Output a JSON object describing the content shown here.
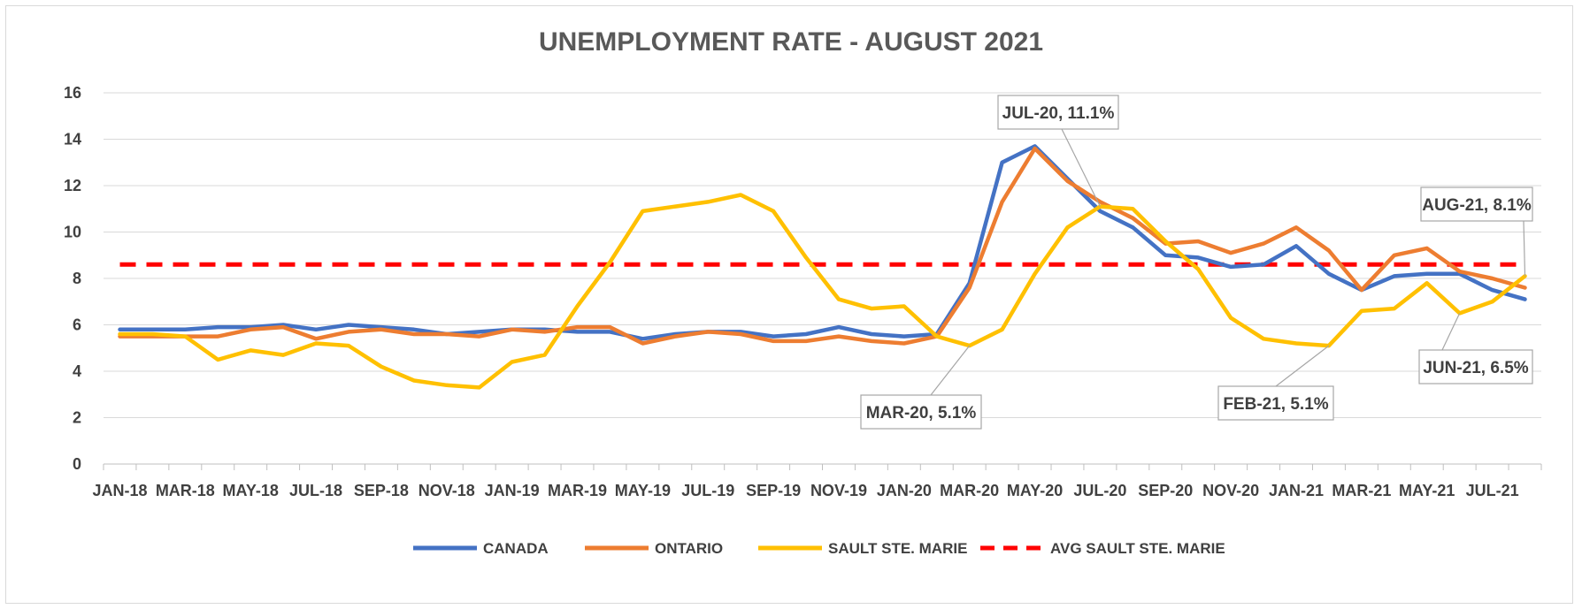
{
  "chart_data": {
    "type": "line",
    "title": "UNEMPLOYMENT RATE - AUGUST 2021",
    "xlabel": "",
    "ylabel": "",
    "ylim": [
      0,
      16
    ],
    "yticks": [
      "0",
      "2",
      "4",
      "6",
      "8",
      "10",
      "12",
      "14",
      "16"
    ],
    "x": [
      "Jan-18",
      "Feb-18",
      "Mar-18",
      "Apr-18",
      "May-18",
      "Jun-18",
      "Jul-18",
      "Aug-18",
      "Sep-18",
      "Oct-18",
      "Nov-18",
      "Dec-18",
      "Jan-19",
      "Feb-19",
      "Mar-19",
      "Apr-19",
      "May-19",
      "Jun-19",
      "Jul-19",
      "Aug-19",
      "Sep-19",
      "Oct-19",
      "Nov-19",
      "Dec-19",
      "Jan-20",
      "Feb-20",
      "Mar-20",
      "Apr-20",
      "May-20",
      "Jun-20",
      "Jul-20",
      "Aug-20",
      "Sep-20",
      "Oct-20",
      "Nov-20",
      "Dec-20",
      "Jan-21",
      "Feb-21",
      "Mar-21",
      "Apr-21",
      "May-21",
      "Jun-21",
      "Jul-21",
      "Aug-21"
    ],
    "xtick_labels": [
      "JAN-18",
      "MAR-18",
      "MAY-18",
      "JUL-18",
      "SEP-18",
      "NOV-18",
      "JAN-19",
      "MAR-19",
      "MAY-19",
      "JUL-19",
      "SEP-19",
      "NOV-19",
      "JAN-20",
      "MAR-20",
      "MAY-20",
      "JUL-20",
      "SEP-20",
      "NOV-20",
      "JAN-21",
      "MAR-21",
      "MAY-21",
      "JUL-21"
    ],
    "grid": "horizontal",
    "legend_position": "bottom",
    "series": [
      {
        "name": "CANADA",
        "color": "#4472c4",
        "style": "solid",
        "values": [
          5.8,
          5.8,
          5.8,
          5.9,
          5.9,
          6.0,
          5.8,
          6.0,
          5.9,
          5.8,
          5.6,
          5.7,
          5.8,
          5.8,
          5.7,
          5.7,
          5.4,
          5.6,
          5.7,
          5.7,
          5.5,
          5.6,
          5.9,
          5.6,
          5.5,
          5.6,
          7.8,
          13.0,
          13.7,
          12.3,
          10.9,
          10.2,
          9.0,
          8.9,
          8.5,
          8.6,
          9.4,
          8.2,
          7.5,
          8.1,
          8.2,
          8.2,
          7.5,
          7.1
        ]
      },
      {
        "name": "ONTARIO",
        "color": "#ed7d31",
        "style": "solid",
        "values": [
          5.5,
          5.5,
          5.5,
          5.5,
          5.8,
          5.9,
          5.4,
          5.7,
          5.8,
          5.6,
          5.6,
          5.5,
          5.8,
          5.7,
          5.9,
          5.9,
          5.2,
          5.5,
          5.7,
          5.6,
          5.3,
          5.3,
          5.5,
          5.3,
          5.2,
          5.5,
          7.6,
          11.3,
          13.6,
          12.2,
          11.3,
          10.6,
          9.5,
          9.6,
          9.1,
          9.5,
          10.2,
          9.2,
          7.5,
          9.0,
          9.3,
          8.3,
          8.0,
          7.6
        ]
      },
      {
        "name": "SAULT STE. MARIE",
        "color": "#ffc000",
        "style": "solid",
        "values": [
          5.6,
          5.6,
          5.5,
          4.5,
          4.9,
          4.7,
          5.2,
          5.1,
          4.2,
          3.6,
          3.4,
          3.3,
          4.4,
          4.7,
          6.8,
          8.7,
          10.9,
          11.1,
          11.3,
          11.6,
          10.9,
          8.9,
          7.1,
          6.7,
          6.8,
          5.5,
          5.1,
          5.8,
          8.2,
          10.2,
          11.1,
          11.0,
          9.6,
          8.4,
          6.3,
          5.4,
          5.2,
          5.1,
          6.6,
          6.7,
          7.8,
          6.5,
          7.0,
          8.1
        ]
      },
      {
        "name": "AVG SAULT STE. MARIE",
        "color": "#ff0000",
        "style": "dashed",
        "values": [
          8.6,
          8.6,
          8.6,
          8.6,
          8.6,
          8.6,
          8.6,
          8.6,
          8.6,
          8.6,
          8.6,
          8.6,
          8.6,
          8.6,
          8.6,
          8.6,
          8.6,
          8.6,
          8.6,
          8.6,
          8.6,
          8.6,
          8.6,
          8.6,
          8.6,
          8.6,
          8.6,
          8.6,
          8.6,
          8.6,
          8.6,
          8.6,
          8.6,
          8.6,
          8.6,
          8.6,
          8.6,
          8.6,
          8.6,
          8.6,
          8.6,
          8.6,
          8.6,
          8.6
        ]
      }
    ],
    "annotations": [
      {
        "text": "JUL-20,  11.1%",
        "x": "Jul-20",
        "y": 11.1
      },
      {
        "text": "MAR-20, 5.1%",
        "x": "Mar-20",
        "y": 5.1
      },
      {
        "text": "FEB-21, 5.1%",
        "x": "Feb-21",
        "y": 5.1
      },
      {
        "text": "AUG-21, 8.1%",
        "x": "Aug-21",
        "y": 8.1
      },
      {
        "text": "JUN-21, 6.5%",
        "x": "Jun-21",
        "y": 6.5
      }
    ]
  }
}
